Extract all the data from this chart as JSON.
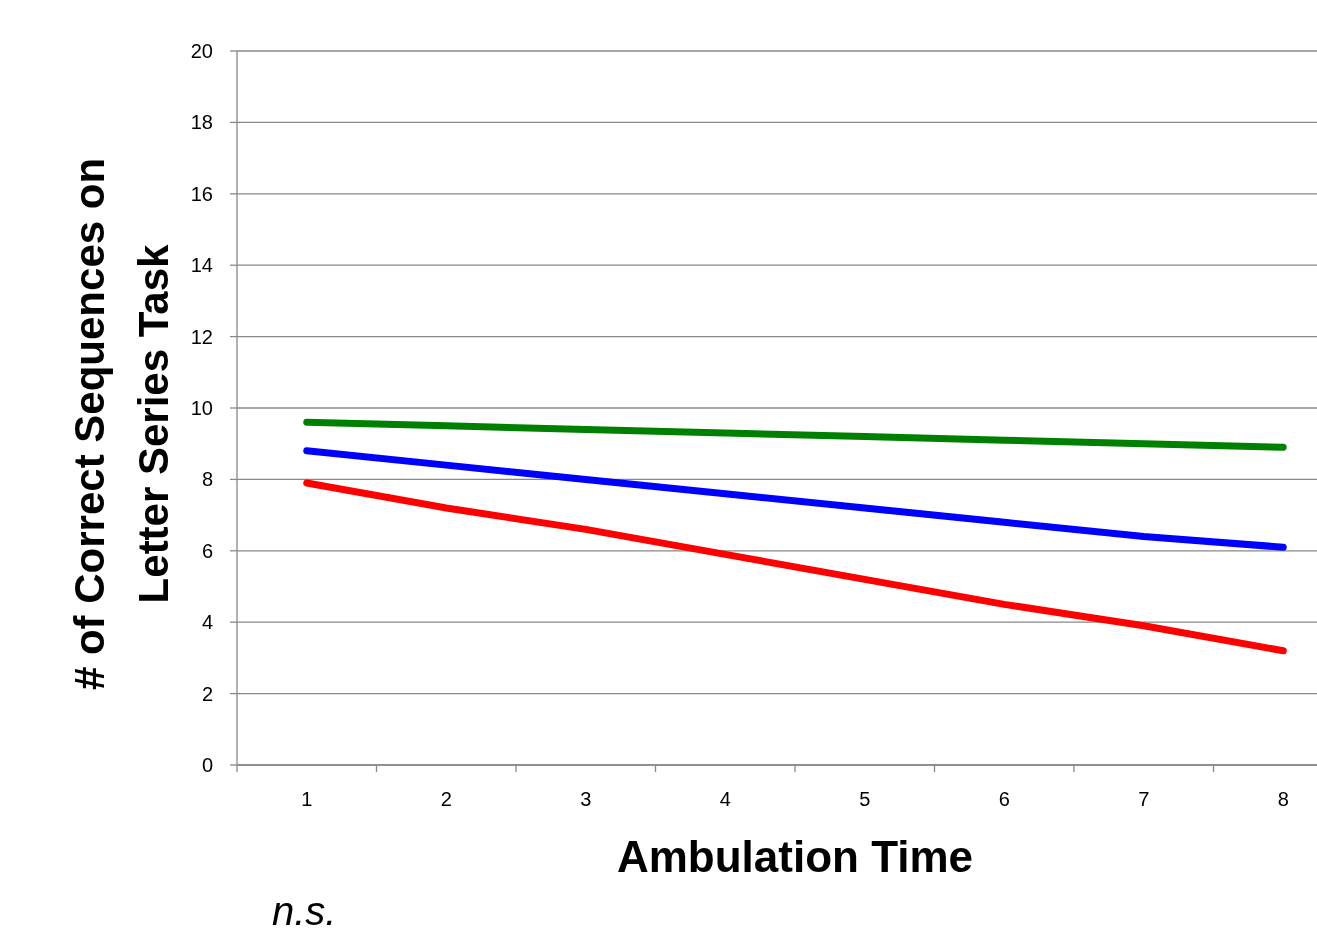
{
  "chart_data": {
    "type": "line",
    "xlabel": "Ambulation Time",
    "ylabel": "# of Correct Sequences on\nLetter Series Task",
    "categories": [
      "1",
      "2",
      "3",
      "4",
      "5",
      "6",
      "7",
      "8"
    ],
    "series": [
      {
        "color": "#008000",
        "values": [
          9.6,
          9.5,
          9.4,
          9.3,
          9.2,
          9.1,
          9.0,
          8.9
        ]
      },
      {
        "color": "#0000ff",
        "values": [
          8.8,
          8.4,
          8.0,
          7.6,
          7.2,
          6.8,
          6.4,
          6.1
        ]
      },
      {
        "color": "#ff0000",
        "values": [
          7.9,
          7.2,
          6.6,
          5.9,
          5.2,
          4.5,
          3.9,
          3.2
        ]
      }
    ],
    "ylim": [
      0,
      20
    ],
    "yticks": [
      0,
      2,
      4,
      6,
      8,
      10,
      12,
      14,
      16,
      18,
      20
    ],
    "grid": "y",
    "marker": "none",
    "line_style": "solid",
    "annotations": [
      "n.s."
    ]
  }
}
